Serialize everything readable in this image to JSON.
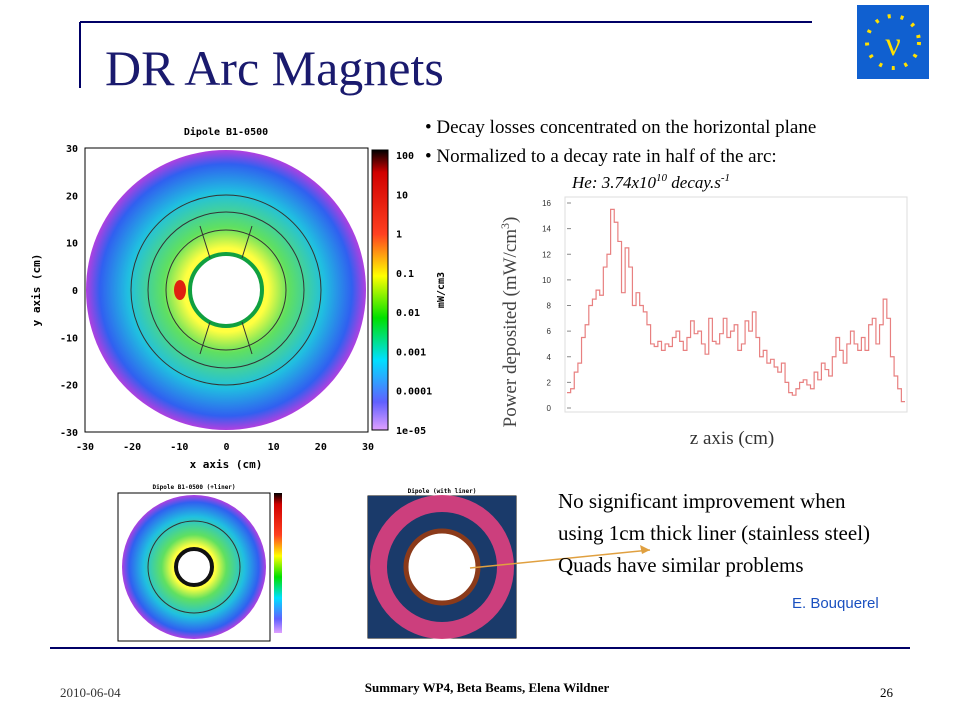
{
  "header": {
    "title": "DR Arc Magnets"
  },
  "bullets": [
    "Decay losses concentrated on the horizontal plane",
    "Normalized to a decay rate in half of the arc:"
  ],
  "formula": {
    "base": "He: 3.74x10",
    "exp1": "10",
    "unit": " decay.s",
    "exp2": "-1"
  },
  "heatmap": {
    "title": "Dipole B1-0500",
    "xlabel": "x axis (cm)",
    "ylabel": "y axis (cm)",
    "xticks": [
      -30,
      -20,
      -10,
      0,
      10,
      20,
      30
    ],
    "yticks": [
      -30,
      -20,
      -10,
      0,
      10,
      20,
      30
    ],
    "lim": [
      -30,
      30
    ],
    "colorbar_labels": [
      "100",
      "10",
      "1",
      "0.1",
      "0.01",
      "0.001",
      "0.0001",
      "1e-05"
    ],
    "colorbar_unit": "mW/cm3"
  },
  "small_plots": [
    "Dipole B1-0500 (+liner)",
    "Dipole (with liner)"
  ],
  "chart_data": {
    "type": "line",
    "step": true,
    "ylabel": "Power deposited (mW/cm",
    "ylabel_sup": "3",
    "ylabel_end": ")",
    "xlabel": "z axis (cm)",
    "color": "#e88080",
    "ylim": [
      0,
      16
    ],
    "yticks": [
      0,
      2,
      4,
      6,
      8,
      10,
      12,
      14,
      16
    ],
    "values": [
      1.2,
      1.5,
      2.8,
      3.5,
      5.5,
      6.5,
      8,
      8.5,
      9.2,
      8.8,
      11,
      12,
      15.5,
      14.5,
      13,
      9,
      12.5,
      11,
      8,
      9,
      8,
      7.5,
      6.5,
      5,
      4.8,
      5.2,
      4.5,
      5,
      4.8,
      5.5,
      6,
      5.2,
      4.5,
      5.5,
      6.8,
      5.8,
      6,
      5,
      4.2,
      7,
      5.2,
      5,
      5.8,
      7,
      5.5,
      6,
      6.5,
      4.5,
      5,
      6.8,
      6,
      7.5,
      5.5,
      4,
      4.5,
      3.5,
      3.8,
      3.2,
      2.8,
      3.5,
      2,
      1.2,
      1,
      1.5,
      2,
      2.2,
      1.8,
      1.5,
      2.8,
      2.2,
      3.5,
      3,
      2.5,
      4,
      5.5,
      4.5,
      3.5,
      5,
      6,
      5,
      4.5,
      5.5,
      4.5,
      6.5,
      7,
      5,
      6.5,
      8.5,
      7,
      4,
      2.5,
      1.5,
      0.5
    ]
  },
  "note": [
    "No significant improvement when",
    "using 1cm thick liner (stainless steel)",
    "Quads have similar problems"
  ],
  "author": "E. Bouquerel",
  "footer": {
    "date": "2010-06-04",
    "center": "Summary WP4, Beta Beams, Elena Wildner",
    "page": "26"
  }
}
